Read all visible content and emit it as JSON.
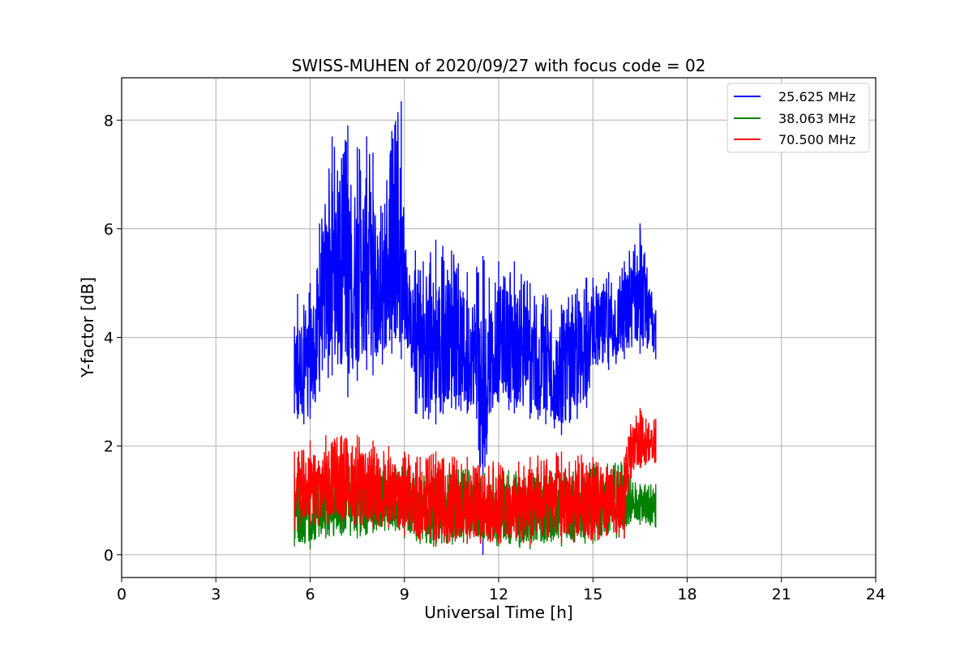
{
  "chart_data": {
    "type": "line",
    "title": "SWISS-MUHEN of 2020/09/27 with focus code = 02",
    "xlabel": "Universal Time [h]",
    "ylabel": "Y-factor [dB]",
    "xlim": [
      0,
      24
    ],
    "ylim": [
      -0.42,
      8.78
    ],
    "x_ticks": [
      0,
      3,
      6,
      9,
      12,
      15,
      18,
      21,
      24
    ],
    "y_ticks": [
      0,
      2,
      4,
      6,
      8
    ],
    "grid": true,
    "legend_position": "top-right",
    "series": [
      {
        "name": "25.625 MHz",
        "color": "#0000ff",
        "envelope": {
          "x": [
            5.5,
            5.6,
            5.8,
            6.0,
            6.3,
            6.7,
            7.0,
            7.2,
            7.5,
            7.8,
            8.0,
            8.3,
            8.6,
            8.9,
            9.1,
            9.35,
            9.6,
            10.0,
            10.5,
            11.0,
            11.3,
            11.5,
            11.7,
            12.0,
            12.5,
            13.0,
            13.5,
            14.0,
            14.5,
            14.8,
            15.0,
            15.5,
            16.0,
            16.5,
            17.0
          ],
          "low": [
            2.6,
            2.5,
            2.4,
            2.5,
            3.0,
            3.3,
            3.5,
            2.9,
            3.2,
            3.4,
            3.3,
            3.5,
            3.7,
            3.6,
            3.8,
            2.6,
            2.5,
            2.4,
            2.7,
            2.6,
            2.5,
            0.0,
            2.6,
            2.8,
            2.6,
            2.5,
            2.4,
            2.2,
            2.5,
            2.7,
            3.5,
            3.4,
            3.6,
            3.7,
            3.6
          ],
          "high": [
            4.2,
            4.8,
            4.6,
            5.0,
            6.1,
            7.7,
            7.3,
            7.9,
            7.5,
            7.7,
            7.4,
            6.3,
            7.8,
            8.35,
            5.0,
            5.6,
            5.4,
            5.8,
            5.6,
            5.2,
            5.3,
            5.5,
            5.1,
            5.4,
            5.4,
            5.0,
            4.8,
            4.6,
            4.9,
            5.1,
            5.1,
            5.2,
            5.4,
            6.1,
            4.5
          ]
        }
      },
      {
        "name": "38.063 MHz",
        "color": "#008000",
        "envelope": {
          "x": [
            5.5,
            6.0,
            6.5,
            7.0,
            7.5,
            8.0,
            8.5,
            9.0,
            9.5,
            10.0,
            11.0,
            12.0,
            13.0,
            14.0,
            15.0,
            16.0,
            16.2,
            16.5,
            17.0
          ],
          "low": [
            0.15,
            0.1,
            0.3,
            0.35,
            0.3,
            0.4,
            0.45,
            0.3,
            0.2,
            0.15,
            0.2,
            0.15,
            0.1,
            0.15,
            0.2,
            0.3,
            0.6,
            0.55,
            0.5
          ],
          "high": [
            1.5,
            1.6,
            1.7,
            1.8,
            1.7,
            1.7,
            1.6,
            1.7,
            1.5,
            1.6,
            1.6,
            1.6,
            1.5,
            1.5,
            1.7,
            1.7,
            1.4,
            1.3,
            1.3
          ]
        }
      },
      {
        "name": "70.500 MHz",
        "color": "#ff0000",
        "envelope": {
          "x": [
            5.5,
            6.0,
            6.5,
            7.0,
            7.5,
            8.0,
            8.5,
            9.0,
            9.5,
            10.0,
            11.0,
            12.0,
            13.0,
            14.0,
            15.0,
            16.0,
            16.2,
            16.5,
            17.0
          ],
          "low": [
            0.45,
            0.55,
            0.55,
            0.6,
            0.55,
            0.5,
            0.5,
            0.35,
            0.25,
            0.15,
            0.2,
            0.2,
            0.15,
            0.2,
            0.25,
            0.3,
            1.4,
            1.6,
            1.7
          ],
          "high": [
            1.9,
            2.1,
            2.2,
            2.2,
            2.2,
            2.1,
            2.0,
            1.9,
            1.8,
            1.9,
            1.8,
            1.7,
            1.8,
            1.9,
            1.8,
            1.8,
            2.4,
            2.7,
            2.5
          ]
        }
      }
    ]
  }
}
